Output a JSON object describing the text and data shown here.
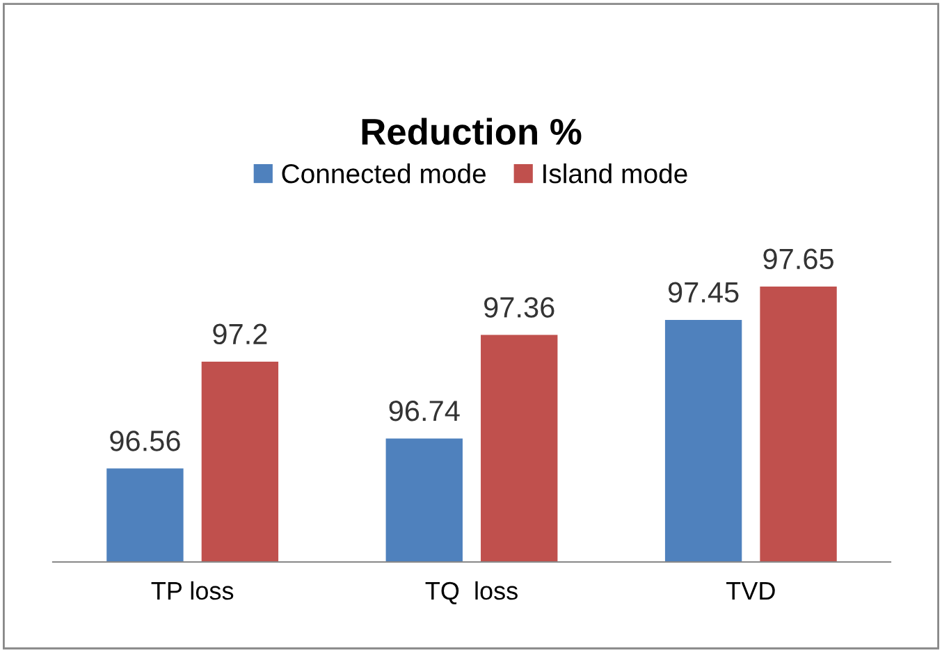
{
  "chart_data": {
    "type": "bar",
    "title": "Reduction %",
    "categories": [
      "TP loss",
      "TQ  loss",
      "TVD"
    ],
    "series": [
      {
        "name": "Connected mode",
        "color": "#4f81bd",
        "values": [
          96.56,
          96.74,
          97.45
        ]
      },
      {
        "name": "Island mode",
        "color": "#c0504d",
        "values": [
          97.2,
          97.36,
          97.65
        ]
      }
    ],
    "ylim": [
      96,
      97.65
    ],
    "tick_labels": "x",
    "data_labels": true,
    "legend": "top",
    "grid": false
  }
}
